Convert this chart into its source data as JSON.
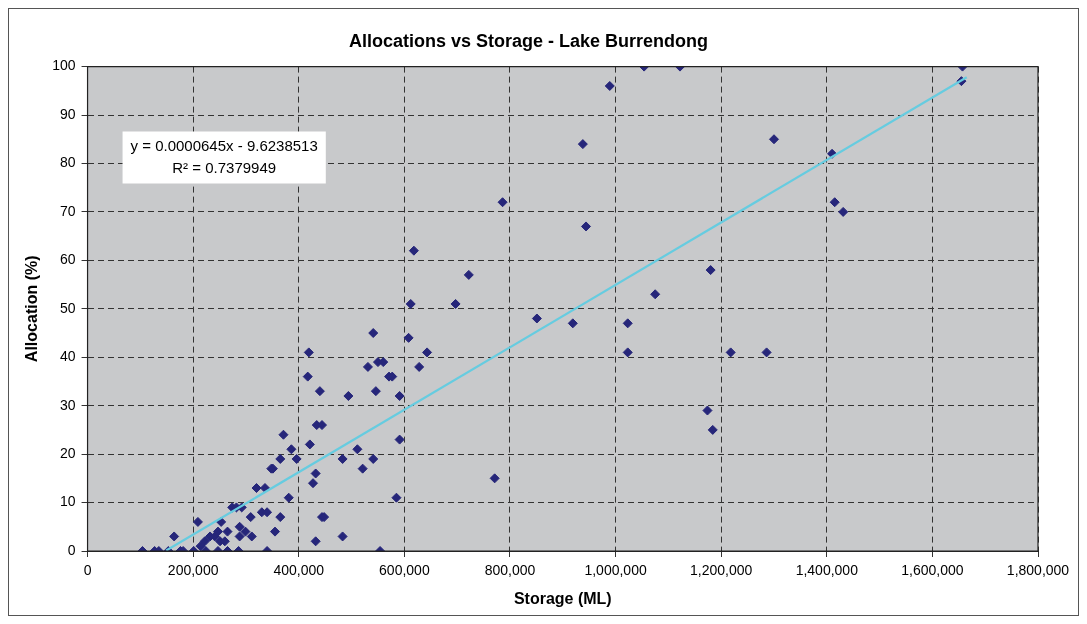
{
  "chart_data": {
    "type": "scatter",
    "title": "Allocations vs Storage - Lake Burrendong",
    "xlabel": "Storage (ML)",
    "ylabel": "Allocation (%)",
    "xlim": [
      0,
      1800000
    ],
    "xticks": [
      0,
      {
        "value": 200000,
        "label": "200,000"
      },
      {
        "value": 400000,
        "label": "400,000"
      },
      {
        "value": 600000,
        "label": "600,000"
      },
      {
        "value": 800000,
        "label": "800,000"
      },
      {
        "value": 1000000,
        "label": "1,000,000"
      },
      {
        "value": 1200000,
        "label": "1,200,000"
      },
      {
        "value": 1400000,
        "label": "1,400,000"
      },
      {
        "value": 1600000,
        "label": "1,600,000"
      },
      {
        "value": 1800000,
        "label": "1,800,000"
      }
    ],
    "ylim": [
      0,
      100
    ],
    "yticks": [
      0,
      10,
      20,
      30,
      40,
      50,
      60,
      70,
      80,
      90,
      100
    ],
    "grid": true,
    "legend": false,
    "annotations": [
      "y = 0.0000645x - 9.6238513",
      "R² = 0.7379949"
    ],
    "series": [
      {
        "type": "scatter",
        "marker": "diamond",
        "color": "#26267a",
        "x": [
          104000,
          127000,
          135000,
          153000,
          164000,
          176000,
          181000,
          201000,
          209000,
          214000,
          222000,
          224000,
          232000,
          241000,
          247000,
          251000,
          260000,
          247000,
          265000,
          265000,
          253000,
          274000,
          282000,
          286000,
          288000,
          288000,
          292000,
          299000,
          309000,
          311000,
          320000,
          336000,
          330000,
          340000,
          340000,
          348000,
          351000,
          365000,
          355000,
          365000,
          371000,
          381000,
          386000,
          396000,
          421000,
          427000,
          432000,
          434000,
          444000,
          432000,
          440000,
          417000,
          444000,
          448000,
          483000,
          483000,
          494000,
          511000,
          521000,
          541000,
          546000,
          554000,
          571000,
          618000,
          722000,
          612000,
          697000,
          541000,
          608000,
          419000,
          643000,
          550000,
          560000,
          531000,
          628000,
          577000,
          591000,
          591000,
          585000,
          771000,
          851000,
          919000,
          1023000,
          1023000,
          1075000,
          944000,
          1054000,
          1122000,
          1657000,
          1655000,
          989000,
          938000,
          1300000,
          1410000,
          786000,
          1415000,
          1431000,
          1180000,
          1218000,
          1286000,
          1174000,
          1184000
        ],
        "values": [
          0,
          0,
          0,
          0,
          3,
          0,
          0,
          0,
          6,
          1,
          2,
          0,
          3,
          3,
          4,
          2,
          2,
          0,
          4,
          0,
          6,
          9,
          9,
          0,
          3,
          5,
          9,
          4,
          7,
          3,
          13,
          13,
          8,
          8,
          0,
          17,
          17,
          7,
          4,
          19,
          24,
          11,
          21,
          19,
          22,
          14,
          16,
          26,
          26,
          2,
          33,
          36,
          7,
          7,
          3,
          19,
          32,
          21,
          17,
          19,
          33,
          0,
          36,
          62,
          57,
          51,
          51,
          45,
          44,
          41,
          41,
          39,
          39,
          38,
          38,
          36,
          32,
          23,
          11,
          15,
          48,
          47,
          47,
          41,
          53,
          67,
          100,
          100,
          100,
          97,
          96,
          84,
          85,
          82,
          72,
          72,
          70,
          58,
          41,
          41,
          29,
          25
        ]
      },
      {
        "type": "line",
        "marker": "none",
        "line_style": "solid",
        "color": "#66cce0",
        "x": [
          149000,
          1665000
        ],
        "values": [
          0.1,
          97.8
        ]
      }
    ]
  }
}
